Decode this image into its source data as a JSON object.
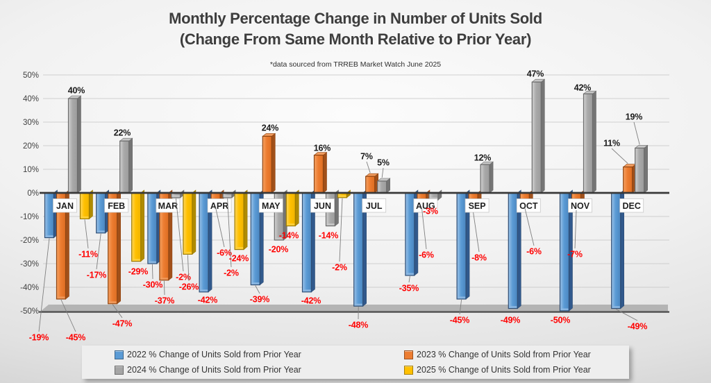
{
  "title": {
    "line1": "Monthly Percentage Change in Number of Units Sold",
    "line2": "(Change From Same Month Relative to Prior Year)",
    "note": "*data sourced from TRREB Market Watch June 2025"
  },
  "chart_data": {
    "type": "bar",
    "title": "Monthly Percentage Change in Number of Units Sold (Change From Same Month Relative to Prior Year)",
    "note": "*data sourced from TRREB Market Watch June 2025",
    "categories": [
      "JAN",
      "FEB",
      "MAR",
      "APR",
      "MAY",
      "JUN",
      "JUL",
      "AUG",
      "SEP",
      "OCT",
      "NOV",
      "DEC"
    ],
    "series": [
      {
        "name": "2022 % Change of Units Sold from Prior Year",
        "color": "#5B9BD5",
        "values": [
          -19,
          -17,
          -30,
          -42,
          -39,
          -42,
          -48,
          -35,
          -45,
          -49,
          -50,
          -49
        ]
      },
      {
        "name": "2023 % Change of Units Sold from Prior Year",
        "color": "#ED7D31",
        "values": [
          -45,
          -47,
          -37,
          -6,
          24,
          16,
          7,
          -6,
          -8,
          -6,
          -7,
          11
        ]
      },
      {
        "name": "2024 % Change of Units Sold from Prior Year",
        "color": "#A5A5A5",
        "values": [
          40,
          22,
          -2,
          -2,
          -20,
          -14,
          5,
          -3,
          12,
          47,
          42,
          19
        ]
      },
      {
        "name": "2025 % Change of Units Sold from Prior Year",
        "color": "#FFC000",
        "values": [
          -11,
          -29,
          -26,
          -24,
          -14,
          -2,
          null,
          null,
          null,
          null,
          null,
          null
        ]
      }
    ],
    "y_axis": {
      "min": -50,
      "max": 50,
      "step": 10,
      "tick_labels": [
        "50%",
        "40%",
        "30%",
        "20%",
        "10%",
        "0%",
        "-10%",
        "-20%",
        "-30%",
        "-40%",
        "-50%"
      ]
    },
    "value_suffix": "%",
    "grid": true,
    "legend_position": "bottom",
    "negative_label_color": "#FF0000",
    "positive_label_color": "#1A1A1A"
  }
}
